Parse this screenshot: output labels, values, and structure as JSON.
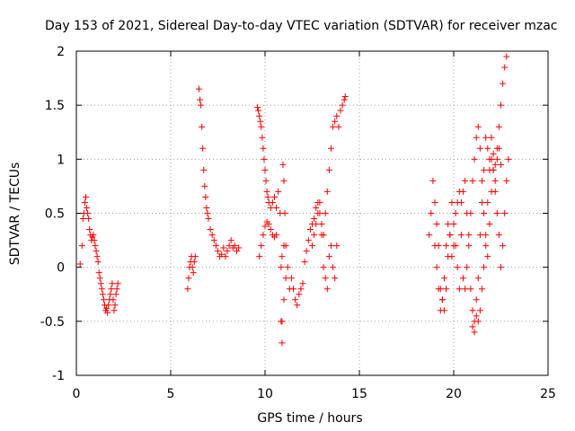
{
  "chart_data": {
    "type": "scatter",
    "title": "Day 153 of 2021, Sidereal Day-to-day VTEC variation (SDTVAR) for receiver mzac",
    "xlabel": "GPS time / hours",
    "ylabel": "SDTVAR / TECUs",
    "xlim": [
      0,
      25
    ],
    "ylim": [
      -1,
      2
    ],
    "xticks": [
      0,
      5,
      10,
      15,
      20,
      25
    ],
    "yticks": [
      -1,
      -0.5,
      0,
      0.5,
      1,
      1.5,
      2
    ],
    "xtick_labels": [
      "0",
      "5",
      "10",
      "15",
      "20",
      "25"
    ],
    "ytick_labels": [
      "-1",
      "-0.5",
      "0",
      "0.5",
      "1",
      "1.5",
      "2"
    ],
    "grid": true,
    "marker": "+",
    "series": [
      {
        "name": "SDTVAR",
        "color": "#ff0000",
        "x": [
          0.2,
          0.3,
          0.35,
          0.4,
          0.45,
          0.5,
          0.55,
          0.6,
          0.65,
          0.7,
          0.75,
          0.8,
          0.85,
          0.9,
          0.95,
          1.0,
          1.05,
          1.1,
          1.15,
          1.2,
          1.25,
          1.3,
          1.35,
          1.4,
          1.45,
          1.5,
          1.55,
          1.6,
          1.65,
          1.7,
          1.75,
          1.8,
          1.85,
          1.9,
          1.95,
          2.0,
          2.05,
          2.1,
          2.15,
          2.2,
          5.9,
          5.95,
          6.0,
          6.05,
          6.1,
          6.15,
          6.2,
          6.25,
          6.3,
          6.5,
          6.55,
          6.6,
          6.65,
          6.7,
          6.75,
          6.8,
          6.85,
          6.9,
          6.95,
          7.0,
          7.1,
          7.2,
          7.3,
          7.4,
          7.5,
          7.6,
          7.7,
          7.8,
          7.9,
          8.0,
          8.1,
          8.2,
          8.3,
          8.4,
          8.5,
          8.6,
          9.6,
          9.65,
          9.7,
          9.75,
          9.8,
          9.85,
          9.9,
          9.95,
          10.0,
          10.05,
          10.1,
          10.15,
          10.2,
          10.3,
          10.4,
          10.5,
          10.6,
          10.7,
          10.8,
          10.85,
          10.9,
          10.95,
          11.0,
          11.05,
          11.1,
          9.7,
          9.8,
          9.9,
          10.0,
          10.1,
          10.2,
          10.3,
          10.4,
          10.5,
          10.6,
          10.9,
          11.0,
          11.1,
          11.2,
          11.3,
          11.4,
          11.5,
          11.6,
          11.7,
          11.8,
          11.9,
          12.0,
          12.1,
          12.2,
          12.3,
          12.4,
          12.5,
          12.6,
          12.7,
          12.8,
          12.9,
          13.0,
          13.1,
          13.2,
          13.3,
          13.4,
          13.5,
          13.6,
          13.7,
          13.8,
          13.9,
          14.0,
          14.1,
          14.2,
          14.25,
          12.5,
          12.6,
          12.7,
          12.8,
          12.9,
          13.0,
          13.1,
          13.2,
          13.3,
          13.4,
          13.5,
          13.6,
          13.7,
          13.8,
          18.7,
          18.8,
          18.9,
          19.0,
          19.1,
          19.2,
          19.3,
          19.4,
          19.5,
          19.6,
          19.7,
          19.8,
          19.9,
          20.0,
          20.1,
          20.2,
          20.3,
          20.4,
          20.5,
          20.6,
          20.7,
          20.8,
          20.9,
          21.0,
          21.1,
          21.2,
          21.3,
          21.4,
          21.5,
          21.6,
          21.7,
          21.8,
          21.9,
          22.0,
          22.1,
          22.2,
          22.3,
          22.4,
          22.5,
          22.6,
          22.7,
          22.8,
          22.9,
          19.0,
          19.1,
          19.2,
          19.3,
          19.4,
          19.5,
          19.6,
          19.7,
          19.8,
          19.9,
          20.0,
          20.1,
          20.2,
          20.3,
          20.4,
          20.5,
          20.6,
          20.7,
          20.8,
          20.9,
          21.0,
          21.1,
          21.2,
          21.3,
          21.4,
          21.5,
          21.6,
          21.7,
          21.8,
          21.9,
          22.0,
          22.1,
          22.2,
          22.3,
          22.4,
          22.5,
          21.0,
          21.1,
          21.2,
          21.3,
          21.4,
          21.5,
          21.6,
          21.7,
          21.8,
          21.9,
          22.0,
          22.1,
          22.2,
          22.3,
          22.4,
          22.5,
          22.6,
          22.7,
          22.8,
          10.85,
          10.9,
          11.0
        ],
        "y": [
          0.03,
          0.2,
          0.45,
          0.5,
          0.6,
          0.65,
          0.55,
          0.5,
          0.45,
          0.35,
          0.3,
          0.25,
          0.28,
          0.3,
          0.25,
          0.2,
          0.15,
          0.1,
          0.05,
          -0.05,
          -0.1,
          -0.15,
          -0.2,
          -0.25,
          -0.3,
          -0.35,
          -0.4,
          -0.38,
          -0.42,
          -0.35,
          -0.3,
          -0.25,
          -0.2,
          -0.15,
          -0.3,
          -0.4,
          -0.35,
          -0.25,
          -0.2,
          -0.15,
          -0.2,
          -0.1,
          0.0,
          0.05,
          0.1,
          0.0,
          -0.05,
          0.05,
          0.1,
          1.65,
          1.55,
          1.5,
          1.3,
          1.1,
          0.9,
          0.75,
          0.65,
          0.55,
          0.5,
          0.45,
          0.35,
          0.3,
          0.25,
          0.2,
          0.15,
          0.1,
          0.12,
          0.18,
          0.1,
          0.15,
          0.2,
          0.25,
          0.18,
          0.2,
          0.15,
          0.18,
          1.48,
          1.45,
          1.4,
          1.35,
          1.3,
          1.2,
          1.1,
          1.0,
          0.9,
          0.8,
          0.7,
          0.65,
          0.6,
          0.55,
          0.6,
          0.65,
          0.55,
          0.7,
          0.5,
          -0.5,
          -0.7,
          0.95,
          0.8,
          0.5,
          0.2,
          0.1,
          0.2,
          0.3,
          0.38,
          0.42,
          0.4,
          0.35,
          0.3,
          0.28,
          0.3,
          -0.5,
          -0.3,
          -0.1,
          0.0,
          -0.2,
          -0.1,
          -0.2,
          -0.3,
          -0.35,
          -0.25,
          -0.2,
          -0.15,
          0.05,
          0.15,
          0.25,
          0.35,
          0.4,
          0.45,
          0.55,
          0.6,
          0.5,
          0.4,
          0.3,
          0.5,
          0.7,
          0.9,
          1.1,
          1.3,
          1.35,
          1.4,
          1.3,
          1.45,
          1.5,
          1.55,
          1.58,
          0.2,
          0.3,
          0.4,
          0.5,
          0.6,
          0.3,
          0.0,
          -0.1,
          -0.2,
          0.1,
          0.2,
          0.0,
          -0.1,
          0.2,
          0.3,
          0.5,
          0.8,
          0.6,
          0.4,
          0.2,
          -0.2,
          -0.3,
          -0.4,
          -0.2,
          0.1,
          0.3,
          0.6,
          0.4,
          0.2,
          0.0,
          -0.2,
          0.6,
          0.7,
          0.8,
          0.5,
          0.2,
          -0.2,
          -0.4,
          -0.5,
          -0.3,
          -0.1,
          0.3,
          0.6,
          0.9,
          1.2,
          1.1,
          0.9,
          1.0,
          1.05,
          0.95,
          1.1,
          1.3,
          1.5,
          1.7,
          1.85,
          1.95,
          1.0,
          0.2,
          0.0,
          -0.2,
          -0.4,
          -0.3,
          -0.1,
          0.2,
          0.4,
          0.3,
          0.1,
          0.2,
          0.5,
          0.6,
          0.7,
          0.3,
          -0.1,
          -0.2,
          0.0,
          0.3,
          0.5,
          0.8,
          1.0,
          1.2,
          1.3,
          1.1,
          0.8,
          0.5,
          0.2,
          0.1,
          0.4,
          0.7,
          0.9,
          0.8,
          1.0,
          1.1,
          0.95,
          -0.55,
          -0.6,
          -0.45,
          -0.5,
          -0.4,
          -0.2,
          0.0,
          0.3,
          0.6,
          1.0,
          1.2,
          0.9,
          0.7,
          0.5,
          0.3,
          0.0,
          0.2,
          0.5,
          0.8,
          0.0,
          0.1,
          0.2
        ]
      }
    ]
  }
}
